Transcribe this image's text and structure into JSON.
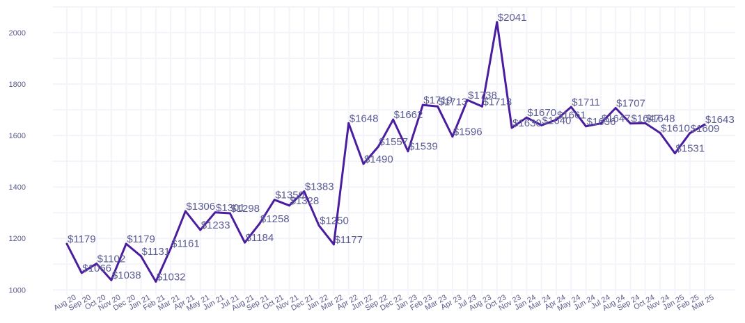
{
  "chart_data": {
    "type": "line",
    "title": "",
    "xlabel": "",
    "ylabel": "",
    "ylim": [
      990,
      2100
    ],
    "yticks": [
      1000,
      1200,
      1400,
      1600,
      1800,
      2000
    ],
    "grid": true,
    "line_color": "#4a1c9e",
    "label_color": "#5b5b95",
    "label_prefix": "$",
    "categories": [
      "Aug 20",
      "Sep 20",
      "Oct 20",
      "Nov 20",
      "Dec 20",
      "Jan 21",
      "Feb 21",
      "Mar 21",
      "Apr 21",
      "May 21",
      "Jun 21",
      "Jul 21",
      "Aug 21",
      "Sep 21",
      "Oct 21",
      "Nov 21",
      "Dec 21",
      "Jan 22",
      "Mar 22",
      "Apr 22",
      "Jun 22",
      "Sep 22",
      "Dec 22",
      "Jan 23",
      "Feb 23",
      "Mar 23",
      "Apr 23",
      "Jul 23",
      "Aug 23",
      "Oct 23",
      "Nov 23",
      "Jan 24",
      "Mar 24",
      "Apr 24",
      "May 24",
      "Jun 24",
      "Jul 24",
      "Aug 24",
      "Sep 24",
      "Oct 24",
      "Nov 24",
      "Jan 25",
      "Feb 25",
      "Mar 25"
    ],
    "values": [
      1179,
      1066,
      1102,
      1038,
      1179,
      1131,
      1032,
      1161,
      1306,
      1233,
      1301,
      1298,
      1184,
      1258,
      1350,
      1328,
      1383,
      1250,
      1177,
      1648,
      1490,
      1557,
      1662,
      1539,
      1719,
      1713,
      1596,
      1738,
      1713,
      2041,
      1630,
      1670,
      1640,
      1661,
      1711,
      1636,
      1647,
      1707,
      1647,
      1648,
      1610,
      1531,
      1609,
      1643
    ]
  }
}
